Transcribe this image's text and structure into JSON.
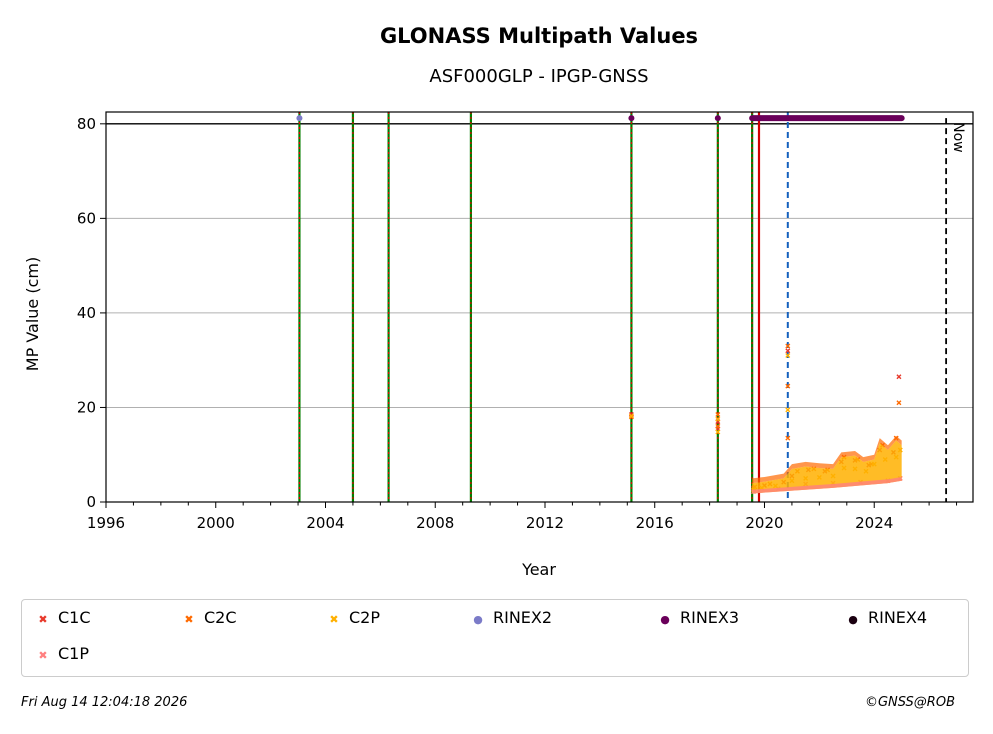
{
  "chart_data": {
    "type": "scatter",
    "title": "GLONASS Multipath Values",
    "subtitle": "ASF000GLP - IPGP-GNSS",
    "xlabel": "Year",
    "ylabel": "MP Value (cm)",
    "xlim": [
      1996,
      2027.6
    ],
    "ylim": [
      0,
      82.5
    ],
    "xticks": [
      1996,
      2000,
      2004,
      2008,
      2012,
      2016,
      2020,
      2024
    ],
    "yticks": [
      0,
      20,
      40,
      60,
      80
    ],
    "grid": "horizontal",
    "threshold_line": 80,
    "now_marker": {
      "label": "Now",
      "x": 2026.62
    },
    "event_lines_green_red": [
      2003.05,
      2005.0,
      2006.3,
      2009.3,
      2015.15,
      2018.3,
      2019.55
    ],
    "event_line_red": 2019.8,
    "event_line_blue_dashed": 2020.85,
    "rinex_markers": [
      {
        "series": "RINEX2",
        "x": 2003.05,
        "y": 81.2
      },
      {
        "series": "RINEX3",
        "x": 2015.15,
        "y": 81.2
      },
      {
        "series": "RINEX3",
        "x": 2018.3,
        "y": 81.2
      },
      {
        "series": "RINEX3",
        "x_range": [
          2019.55,
          2025.0
        ],
        "y": 81.2
      }
    ],
    "series": [
      {
        "name": "C1C",
        "color": "#e8392b",
        "points": [
          [
            2015.15,
            18.5
          ],
          [
            2018.3,
            17.0
          ],
          [
            2018.3,
            15.5
          ],
          [
            2019.6,
            3.0
          ],
          [
            2020.0,
            3.5
          ],
          [
            2020.7,
            4.2
          ],
          [
            2020.85,
            32.0
          ],
          [
            2021.0,
            5.5
          ],
          [
            2021.6,
            6.8
          ],
          [
            2022.2,
            6.5
          ],
          [
            2022.8,
            8.5
          ],
          [
            2023.3,
            8.8
          ],
          [
            2023.8,
            7.8
          ],
          [
            2024.2,
            11.0
          ],
          [
            2024.7,
            10.5
          ],
          [
            2024.9,
            26.5
          ]
        ]
      },
      {
        "name": "C2C",
        "color": "#ff6a00",
        "points": [
          [
            2015.15,
            18.0
          ],
          [
            2018.3,
            18.5
          ],
          [
            2018.3,
            16.0
          ],
          [
            2019.65,
            3.2
          ],
          [
            2020.2,
            3.8
          ],
          [
            2020.85,
            33.0
          ],
          [
            2020.85,
            24.5
          ],
          [
            2020.85,
            13.5
          ],
          [
            2021.2,
            6.5
          ],
          [
            2021.8,
            7.0
          ],
          [
            2022.3,
            6.8
          ],
          [
            2022.9,
            9.5
          ],
          [
            2023.4,
            9.0
          ],
          [
            2023.9,
            8.0
          ],
          [
            2024.3,
            12.0
          ],
          [
            2024.8,
            13.5
          ],
          [
            2024.9,
            21.0
          ]
        ]
      },
      {
        "name": "C2P",
        "color": "#ffb000",
        "points": [
          [
            2015.15,
            18.2
          ],
          [
            2018.3,
            17.5
          ],
          [
            2018.3,
            14.8
          ],
          [
            2019.6,
            2.6
          ],
          [
            2019.9,
            3.0
          ],
          [
            2020.4,
            3.4
          ],
          [
            2020.85,
            31.0
          ],
          [
            2020.85,
            19.5
          ],
          [
            2021.0,
            4.5
          ],
          [
            2021.5,
            5.0
          ],
          [
            2022.0,
            5.2
          ],
          [
            2022.5,
            5.5
          ],
          [
            2022.9,
            7.2
          ],
          [
            2023.3,
            7.0
          ],
          [
            2023.7,
            6.5
          ],
          [
            2024.0,
            8.0
          ],
          [
            2024.4,
            9.0
          ],
          [
            2024.8,
            9.5
          ],
          [
            2024.95,
            11.0
          ]
        ]
      },
      {
        "name": "RINEX2",
        "color": "#7b7bc8",
        "points": [
          [
            2003.05,
            81.2
          ]
        ]
      },
      {
        "name": "RINEX3",
        "color": "#6a005a",
        "points": [
          [
            2015.15,
            81.2
          ],
          [
            2018.3,
            81.2
          ],
          [
            2019.6,
            81.2
          ],
          [
            2020.5,
            81.2
          ],
          [
            2021.5,
            81.2
          ],
          [
            2022.5,
            81.2
          ],
          [
            2023.5,
            81.2
          ],
          [
            2024.5,
            81.2
          ],
          [
            2025.0,
            81.2
          ]
        ]
      },
      {
        "name": "RINEX4",
        "color": "#1a0010",
        "points": []
      },
      {
        "name": "C1P",
        "color": "#ff7f7f",
        "points": [
          [
            2019.6,
            2.2
          ],
          [
            2020.5,
            2.8
          ],
          [
            2021.5,
            3.8
          ],
          [
            2022.5,
            4.0
          ],
          [
            2023.5,
            4.2
          ],
          [
            2024.5,
            4.5
          ],
          [
            2024.95,
            5.0
          ]
        ]
      }
    ]
  },
  "legend": {
    "items": [
      {
        "label": "C1C",
        "marker": "x",
        "color": "#e8392b"
      },
      {
        "label": "C2C",
        "marker": "x",
        "color": "#ff6a00"
      },
      {
        "label": "C2P",
        "marker": "x",
        "color": "#ffb000"
      },
      {
        "label": "RINEX2",
        "marker": "dot",
        "color": "#7b7bc8"
      },
      {
        "label": "RINEX3",
        "marker": "dot",
        "color": "#6a005a"
      },
      {
        "label": "RINEX4",
        "marker": "dot",
        "color": "#1a0010"
      },
      {
        "label": "C1P",
        "marker": "x",
        "color": "#ff7f7f"
      }
    ]
  },
  "footer": {
    "timestamp": "Fri Aug 14 12:04:18 2026",
    "copyright": "©GNSS@ROB"
  }
}
